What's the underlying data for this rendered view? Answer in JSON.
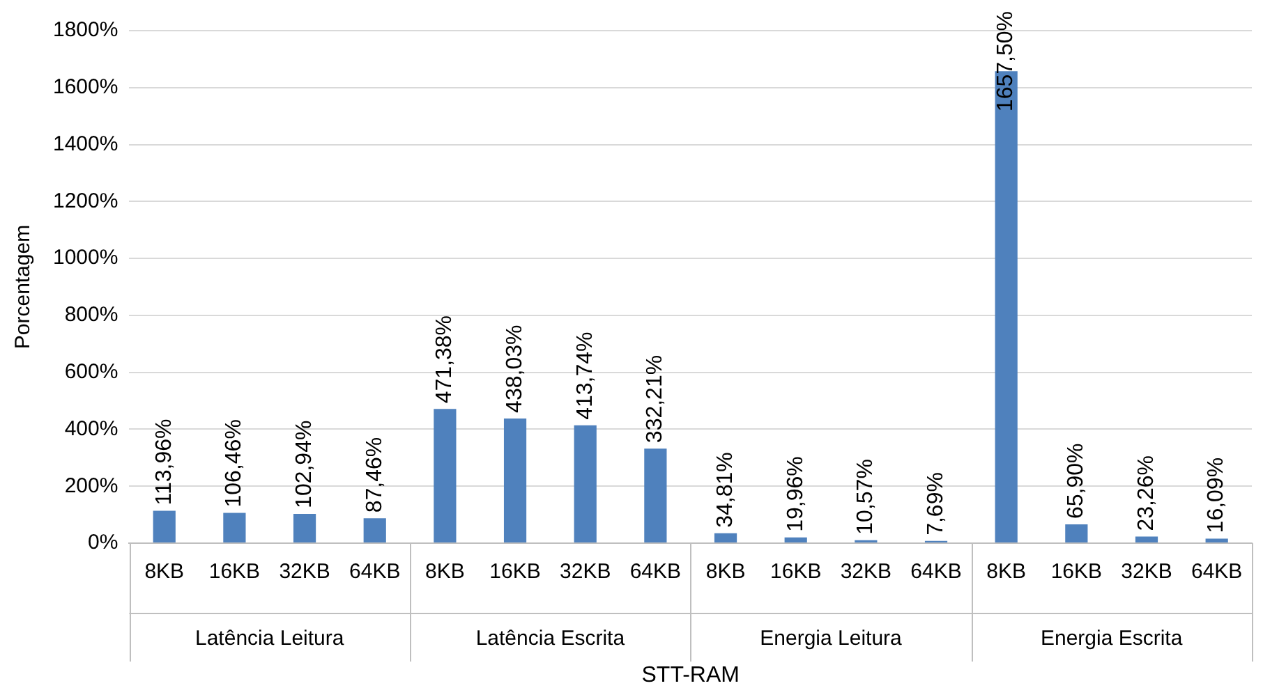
{
  "chart_data": {
    "type": "bar",
    "xlabel": "STT-RAM",
    "ylabel": "Porcentagem",
    "categories": [
      "8KB",
      "16KB",
      "32KB",
      "64KB",
      "8KB",
      "16KB",
      "32KB",
      "64KB",
      "8KB",
      "16KB",
      "32KB",
      "64KB",
      "8KB",
      "16KB",
      "32KB",
      "64KB"
    ],
    "annotations": [
      "Latência Leitura",
      "Latência Escrita",
      "Energia Leitura",
      "Energia Escrita"
    ],
    "values": [
      113.96,
      106.46,
      102.94,
      87.46,
      471.38,
      438.03,
      413.74,
      332.21,
      34.81,
      19.96,
      10.57,
      7.69,
      1657.5,
      65.9,
      23.26,
      16.09
    ],
    "value_labels": [
      "113,96%",
      "106,46%",
      "102,94%",
      "87,46%",
      "471,38%",
      "438,03%",
      "413,74%",
      "332,21%",
      "34,81%",
      "19,96%",
      "10,57%",
      "7,69%",
      "1657,50%",
      "65,90%",
      "23,26%",
      "16,09%"
    ],
    "color": "#4f81bd",
    "ylim": [
      0,
      1800
    ],
    "yticks": [
      {
        "value": 0,
        "label": "0%"
      },
      {
        "value": 200,
        "label": "200%"
      },
      {
        "value": 400,
        "label": "400%"
      },
      {
        "value": 600,
        "label": "600%"
      },
      {
        "value": 800,
        "label": "800%"
      },
      {
        "value": 1000,
        "label": "1000%"
      },
      {
        "value": 1200,
        "label": "1200%"
      },
      {
        "value": 1400,
        "label": "1400%"
      },
      {
        "value": 1600,
        "label": "1600%"
      },
      {
        "value": 1800,
        "label": "1800%"
      }
    ],
    "grid": true
  }
}
